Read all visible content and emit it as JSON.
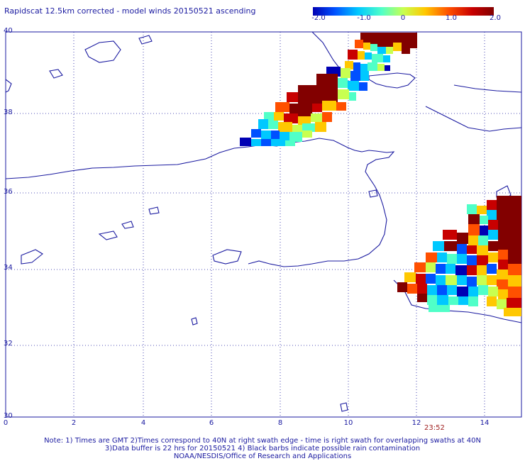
{
  "title": "Rapidscat 12.5km corrected - model winds 20150521 ascending",
  "colorbar": {
    "ticks": [
      "-2.0",
      "-1.0",
      "0",
      "1.0",
      "2.0"
    ],
    "tick_values": [
      -2.0,
      -1.0,
      0,
      1.0,
      2.0
    ],
    "colors": [
      "#0000b4",
      "#0050ff",
      "#00c8ff",
      "#50ffc8",
      "#c8ff50",
      "#ffc800",
      "#ff5000",
      "#c80000",
      "#820000"
    ]
  },
  "axes": {
    "lat_labels": [
      "40",
      "38",
      "36",
      "34",
      "32",
      "30"
    ],
    "lat_values": [
      40,
      38,
      36,
      34,
      32,
      30
    ],
    "lon_labels": [
      "0",
      "2",
      "4",
      "6",
      "8",
      "10",
      "12",
      "14"
    ],
    "lon_values": [
      0,
      2,
      4,
      6,
      8,
      10,
      12,
      14
    ]
  },
  "time_label": "23:52",
  "notes": {
    "line1": "Note: 1) Times are GMT 2)Times correspond to 40N at right swath edge - time is right swath for overlapping swaths at 40N",
    "line2": "3)Data buffer is 22 hrs for 20150521 4) Black barbs indicate possible rain contamination",
    "line3": "NOAA/NESDIS/Office of Research and Applications"
  },
  "swaths": {
    "north": {
      "lon_range": [
        6.9,
        12.0
      ],
      "lat_range": [
        37.3,
        40.1
      ],
      "pattern": "red-dominant core with cyan, yellow and blue edges"
    },
    "southeast": {
      "lon_range": [
        11.5,
        15.0
      ],
      "lat_range": [
        33.0,
        36.2
      ],
      "pattern": "red-dominant north, mixed blue/yellow south"
    }
  }
}
